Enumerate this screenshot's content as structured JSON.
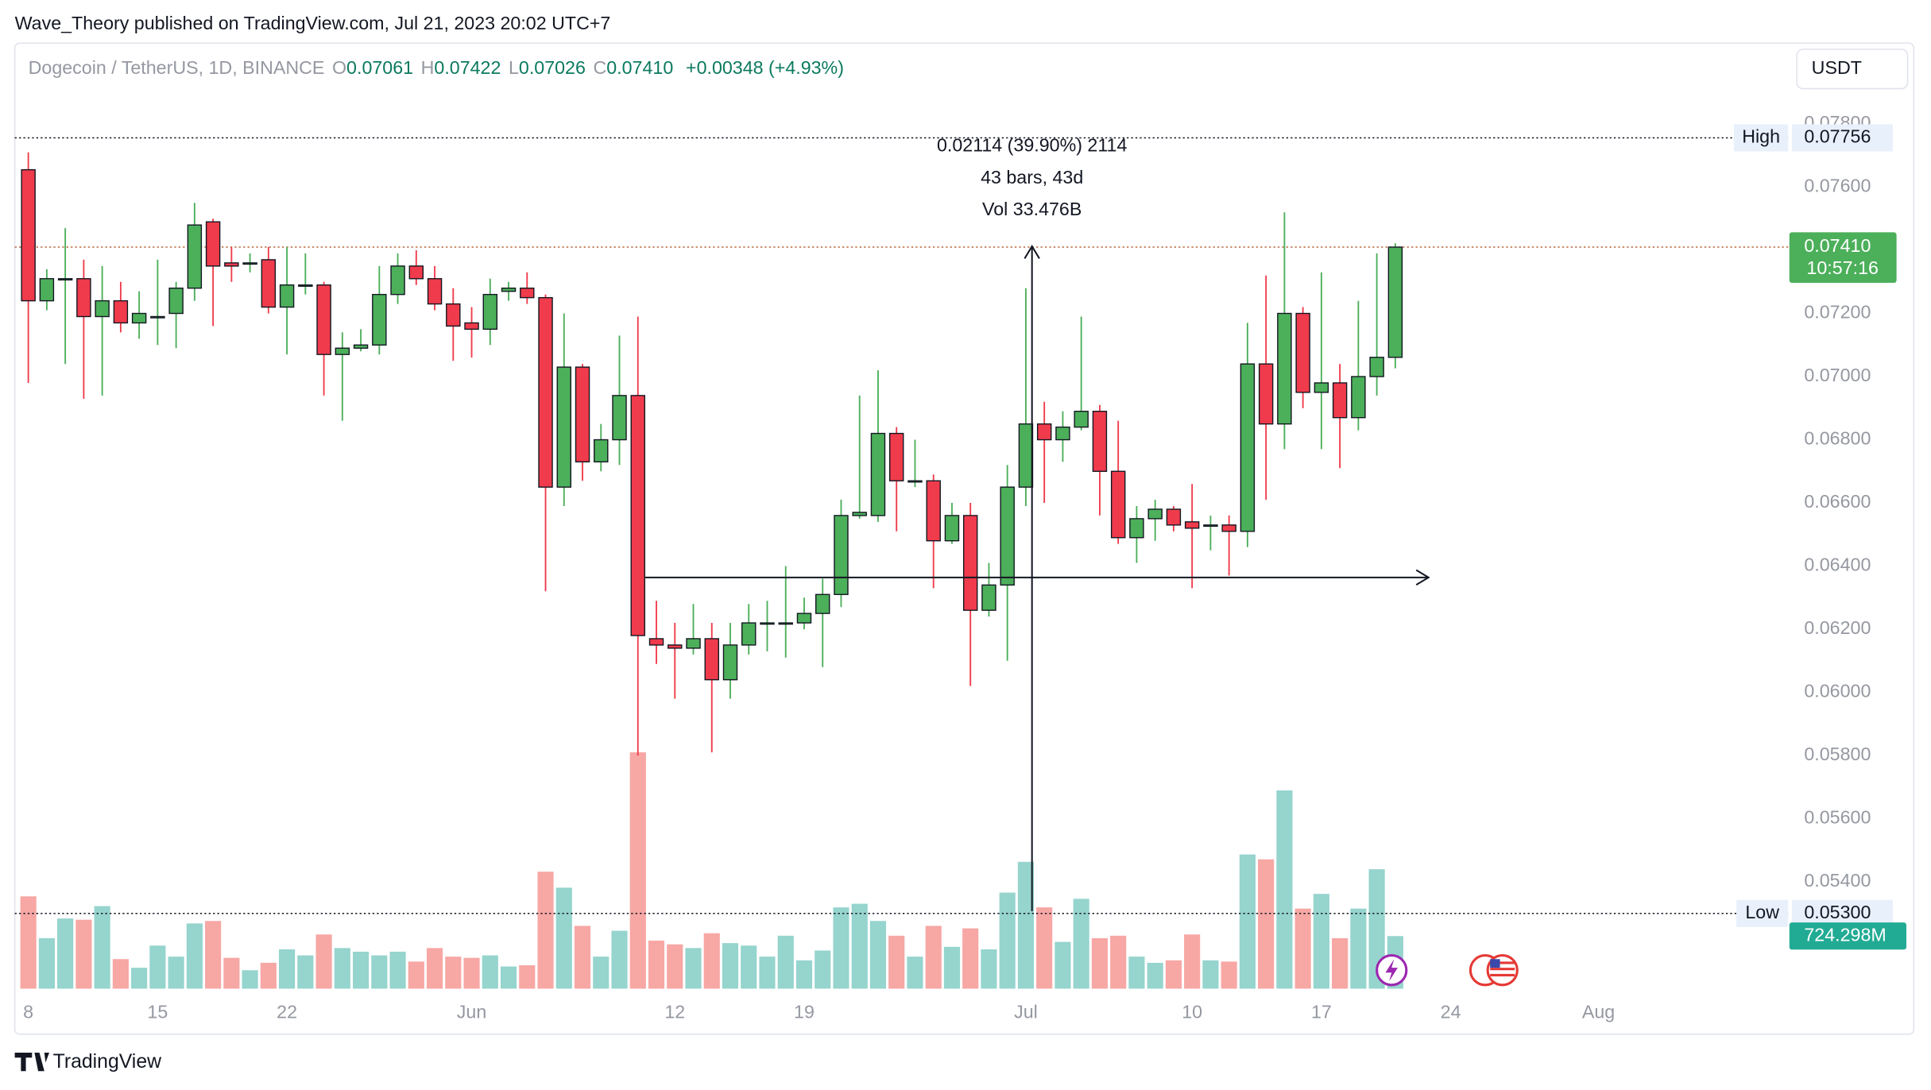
{
  "header": {
    "publisher": "Wave_Theory published on TradingView.com, Jul 21, 2023 20:02 UTC+7"
  },
  "currency": "USDT",
  "footer": {
    "brand": "TradingView"
  },
  "chart_data": {
    "type": "candlestick",
    "title": "Dogecoin / TetherUS, 1D, BINANCE",
    "legend": {
      "open_label": "O",
      "open": "0.07061",
      "high_label": "H",
      "high": "0.07422",
      "low_label": "L",
      "low": "0.07026",
      "close_label": "C",
      "close": "0.07410",
      "change": "+0.00348 (+4.93%)"
    },
    "x": [
      "May 8",
      "May 9",
      "May 10",
      "May 11",
      "May 12",
      "May 13",
      "May 14",
      "May 15",
      "May 16",
      "May 17",
      "May 18",
      "May 19",
      "May 20",
      "May 21",
      "May 22",
      "May 23",
      "May 24",
      "May 25",
      "May 26",
      "May 27",
      "May 28",
      "May 29",
      "May 30",
      "May 31",
      "Jun 1",
      "Jun 2",
      "Jun 3",
      "Jun 4",
      "Jun 5",
      "Jun 6",
      "Jun 7",
      "Jun 8",
      "Jun 9",
      "Jun 10",
      "Jun 11",
      "Jun 12",
      "Jun 13",
      "Jun 14",
      "Jun 15",
      "Jun 16",
      "Jun 17",
      "Jun 18",
      "Jun 19",
      "Jun 20",
      "Jun 21",
      "Jun 22",
      "Jun 23",
      "Jun 24",
      "Jun 25",
      "Jun 26",
      "Jun 27",
      "Jun 28",
      "Jun 29",
      "Jun 30",
      "Jul 1",
      "Jul 2",
      "Jul 3",
      "Jul 4",
      "Jul 5",
      "Jul 6",
      "Jul 7",
      "Jul 8",
      "Jul 9",
      "Jul 10",
      "Jul 11",
      "Jul 12",
      "Jul 13",
      "Jul 14",
      "Jul 15",
      "Jul 16",
      "Jul 17",
      "Jul 18",
      "Jul 19",
      "Jul 20",
      "Jul 21"
    ],
    "open": [
      0.07655,
      0.0724,
      0.0731,
      0.0731,
      0.0719,
      0.0724,
      0.0717,
      0.0719,
      0.072,
      0.0728,
      0.0749,
      0.0736,
      0.0736,
      0.0737,
      0.0722,
      0.0729,
      0.0729,
      0.0707,
      0.0709,
      0.071,
      0.0726,
      0.0735,
      0.0731,
      0.0723,
      0.0717,
      0.0715,
      0.0727,
      0.0728,
      0.0725,
      0.0665,
      0.0703,
      0.0673,
      0.068,
      0.0694,
      0.0617,
      0.0615,
      0.0614,
      0.0617,
      0.0604,
      0.0615,
      0.0622,
      0.0622,
      0.0622,
      0.0625,
      0.0631,
      0.0656,
      0.0656,
      0.0682,
      0.0667,
      0.0667,
      0.0648,
      0.0656,
      0.0626,
      0.0634,
      0.0665,
      0.0685,
      0.068,
      0.0684,
      0.0689,
      0.067,
      0.0649,
      0.0655,
      0.0658,
      0.0654,
      0.0653,
      0.0653,
      0.0651,
      0.0704,
      0.0685,
      0.072,
      0.0695,
      0.0698,
      0.0687,
      0.07,
      0.07061
    ],
    "high": [
      0.0771,
      0.0734,
      0.0747,
      0.0737,
      0.0735,
      0.073,
      0.0727,
      0.0737,
      0.073,
      0.0755,
      0.075,
      0.0741,
      0.0739,
      0.0741,
      0.0741,
      0.0739,
      0.073,
      0.0714,
      0.0715,
      0.0735,
      0.0739,
      0.074,
      0.0735,
      0.0728,
      0.0722,
      0.0731,
      0.073,
      0.0733,
      0.0726,
      0.072,
      0.0704,
      0.0685,
      0.0713,
      0.0719,
      0.0629,
      0.0622,
      0.0628,
      0.0622,
      0.0622,
      0.0628,
      0.0629,
      0.064,
      0.063,
      0.0636,
      0.0661,
      0.0694,
      0.0702,
      0.0684,
      0.068,
      0.0669,
      0.066,
      0.066,
      0.0641,
      0.0672,
      0.0728,
      0.0692,
      0.0689,
      0.0719,
      0.0691,
      0.0686,
      0.0659,
      0.0661,
      0.0659,
      0.0666,
      0.0656,
      0.0656,
      0.0717,
      0.0732,
      0.0752,
      0.0722,
      0.0733,
      0.0704,
      0.0724,
      0.0739,
      0.07422
    ],
    "low": [
      0.0698,
      0.0721,
      0.0704,
      0.0693,
      0.0694,
      0.0714,
      0.0712,
      0.071,
      0.0709,
      0.0724,
      0.0716,
      0.073,
      0.0733,
      0.072,
      0.0707,
      0.0726,
      0.0694,
      0.0686,
      0.0708,
      0.0707,
      0.0723,
      0.0729,
      0.0721,
      0.0705,
      0.0706,
      0.071,
      0.0724,
      0.0723,
      0.0632,
      0.0659,
      0.0667,
      0.067,
      0.0672,
      0.058,
      0.0609,
      0.0598,
      0.0612,
      0.0581,
      0.0598,
      0.0612,
      0.0613,
      0.0611,
      0.062,
      0.0608,
      0.0627,
      0.0655,
      0.0654,
      0.0651,
      0.0665,
      0.0633,
      0.0647,
      0.0602,
      0.0624,
      0.061,
      0.0659,
      0.066,
      0.0673,
      0.0683,
      0.0656,
      0.0647,
      0.0641,
      0.0648,
      0.0651,
      0.0633,
      0.0645,
      0.0637,
      0.0646,
      0.0661,
      0.0677,
      0.069,
      0.0677,
      0.0671,
      0.0683,
      0.0694,
      0.07026
    ],
    "close": [
      0.0724,
      0.0731,
      0.0731,
      0.0719,
      0.0724,
      0.0717,
      0.072,
      0.0719,
      0.0728,
      0.0748,
      0.0735,
      0.0735,
      0.0736,
      0.0722,
      0.0729,
      0.0729,
      0.0707,
      0.0709,
      0.071,
      0.0726,
      0.0735,
      0.0731,
      0.0723,
      0.0716,
      0.0715,
      0.0726,
      0.0728,
      0.0725,
      0.0665,
      0.0703,
      0.0673,
      0.068,
      0.0694,
      0.0618,
      0.0615,
      0.0614,
      0.0617,
      0.0604,
      0.0615,
      0.0622,
      0.0622,
      0.0622,
      0.0625,
      0.0631,
      0.0656,
      0.0657,
      0.0682,
      0.0667,
      0.0667,
      0.0648,
      0.0656,
      0.0626,
      0.0634,
      0.0665,
      0.0685,
      0.068,
      0.0684,
      0.0689,
      0.067,
      0.0649,
      0.0655,
      0.0658,
      0.0653,
      0.0652,
      0.0653,
      0.0651,
      0.0704,
      0.0685,
      0.072,
      0.0695,
      0.0698,
      0.0687,
      0.07,
      0.07061,
      0.0741
    ],
    "volume": [
      1271000000,
      695000000,
      966000000,
      949000000,
      1136000000,
      407000000,
      288000000,
      593000000,
      441000000,
      898000000,
      932000000,
      424000000,
      254000000,
      356000000,
      542000000,
      458000000,
      746000000,
      559000000,
      509000000,
      458000000,
      509000000,
      373000000,
      559000000,
      441000000,
      424000000,
      458000000,
      305000000,
      322000000,
      1610000000,
      1390000000,
      864000000,
      441000000,
      797000000,
      3254000000,
      661000000,
      610000000,
      559000000,
      763000000,
      627000000,
      593000000,
      441000000,
      729000000,
      390000000,
      525000000,
      1119000000,
      1169000000,
      932000000,
      729000000,
      441000000,
      864000000,
      576000000,
      830000000,
      542000000,
      1322000000,
      1746000000,
      1119000000,
      644000000,
      1237000000,
      695000000,
      729000000,
      441000000,
      356000000,
      390000000,
      746000000,
      390000000,
      373000000,
      1847000000,
      1780000000,
      2729000000,
      1102000000,
      1305000000,
      695000000,
      1102000000,
      1644000000,
      724298000
    ],
    "last_volume_label": "724.298M",
    "up_color": "#4caf5a",
    "down_color": "#ef3b4b",
    "volume_up_color": "#96d4ce",
    "volume_down_color": "#f7a7a4",
    "ylim": [
      0.05054,
      0.08056
    ],
    "yticks": [
      {
        "value": 0.078,
        "label": "0.07800"
      },
      {
        "value": 0.076,
        "label": "0.07600"
      },
      {
        "value": 0.074,
        "label": "0.07400"
      },
      {
        "value": 0.072,
        "label": "0.07200"
      },
      {
        "value": 0.07,
        "label": "0.07000"
      },
      {
        "value": 0.068,
        "label": "0.06800"
      },
      {
        "value": 0.066,
        "label": "0.06600"
      },
      {
        "value": 0.064,
        "label": "0.06400"
      },
      {
        "value": 0.062,
        "label": "0.06200"
      },
      {
        "value": 0.06,
        "label": "0.06000"
      },
      {
        "value": 0.058,
        "label": "0.05800"
      },
      {
        "value": 0.056,
        "label": "0.05600"
      },
      {
        "value": 0.054,
        "label": "0.05400"
      }
    ],
    "volume_lim": [
      0,
      4000000000
    ],
    "xticks": [
      {
        "value": "May 8",
        "label": "8"
      },
      {
        "value": "May 15",
        "label": "15"
      },
      {
        "value": "May 22",
        "label": "22"
      },
      {
        "value": "Jun 1",
        "label": "Jun"
      },
      {
        "value": "Jun 12",
        "label": "12"
      },
      {
        "value": "Jun 19",
        "label": "19"
      },
      {
        "value": "Jul 1",
        "label": "Jul"
      },
      {
        "value": "Jul 10",
        "label": "10"
      },
      {
        "value": "Jul 17",
        "label": "17"
      },
      {
        "value": "Jul 24",
        "label": "24"
      },
      {
        "value": "Aug 1",
        "label": "Aug"
      }
    ],
    "grid": false,
    "annotations": [
      "0.02114 (39.90%) 2114",
      "43 bars, 43d",
      "Vol 33.476B"
    ],
    "high_line": {
      "label": "High",
      "value": 0.07756
    },
    "low_line": {
      "label": "Low",
      "value": 0.053,
      "value_label": "0.05300"
    },
    "last_price": {
      "value_label": "0.07410",
      "countdown": "10:57:16"
    }
  }
}
